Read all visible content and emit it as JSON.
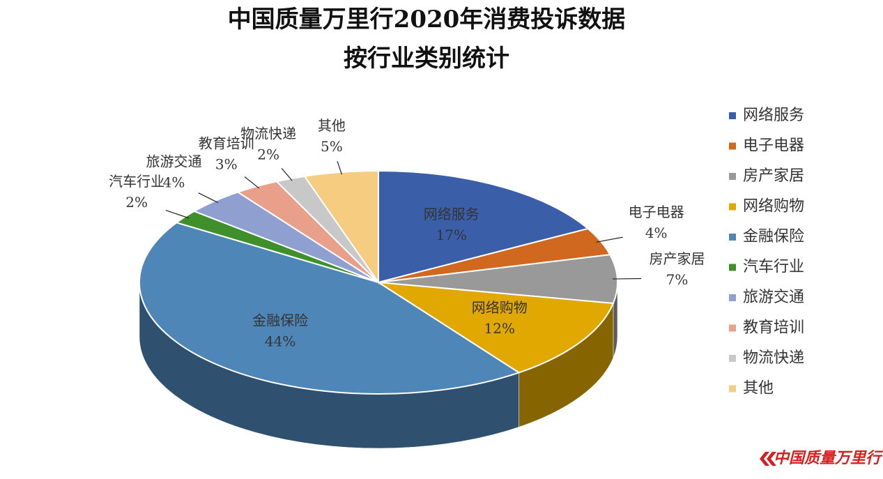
{
  "chart_data": {
    "type": "pie",
    "title": "中国质量万里行2020年消费投诉数据",
    "subtitle": "按行业类别统计",
    "categories": [
      "网络服务",
      "电子电器",
      "房产家居",
      "网络购物",
      "金融保险",
      "汽车行业",
      "旅游交通",
      "教育培训",
      "物流快递",
      "其他"
    ],
    "values": [
      17,
      4,
      7,
      12,
      44,
      2,
      4,
      3,
      2,
      5
    ],
    "value_labels": [
      "17%",
      "4%",
      "7%",
      "12%",
      "44%",
      "2%",
      "4%",
      "3%",
      "2%",
      "5%"
    ],
    "colors": [
      "#3a5fa8",
      "#d0691f",
      "#999999",
      "#e0a800",
      "#4f86b8",
      "#3f8f2a",
      "#8e9fd0",
      "#e8a08a",
      "#c8c8c8",
      "#f5cc80"
    ],
    "legend": "right",
    "watermark": "中国质量万里行"
  }
}
